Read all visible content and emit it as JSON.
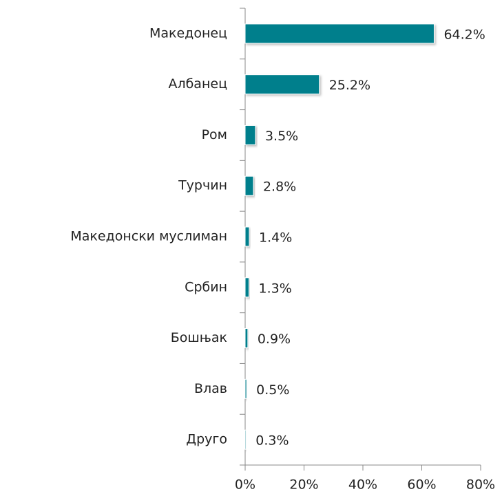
{
  "chart_data": {
    "type": "bar",
    "orientation": "horizontal",
    "categories": [
      "Македонец",
      "Албанец",
      "Ром",
      "Турчин",
      "Македонски муслиман",
      "Србин",
      "Бошњак",
      "Влав",
      "Друго"
    ],
    "values": [
      64.2,
      25.2,
      3.5,
      2.8,
      1.4,
      1.3,
      0.9,
      0.5,
      0.3
    ],
    "value_labels": [
      "64.2%",
      "25.2%",
      "3.5%",
      "2.8%",
      "1.4%",
      "1.3%",
      "0.9%",
      "0.5%",
      "0.3%"
    ],
    "color": "#007f8c",
    "xlim": [
      0,
      80
    ],
    "xticks": [
      {
        "value": 0,
        "label": "0%"
      },
      {
        "value": 20,
        "label": "20%"
      },
      {
        "value": 40,
        "label": "40%"
      },
      {
        "value": 60,
        "label": "60%"
      },
      {
        "value": 80,
        "label": "80%"
      }
    ],
    "grid": false
  }
}
